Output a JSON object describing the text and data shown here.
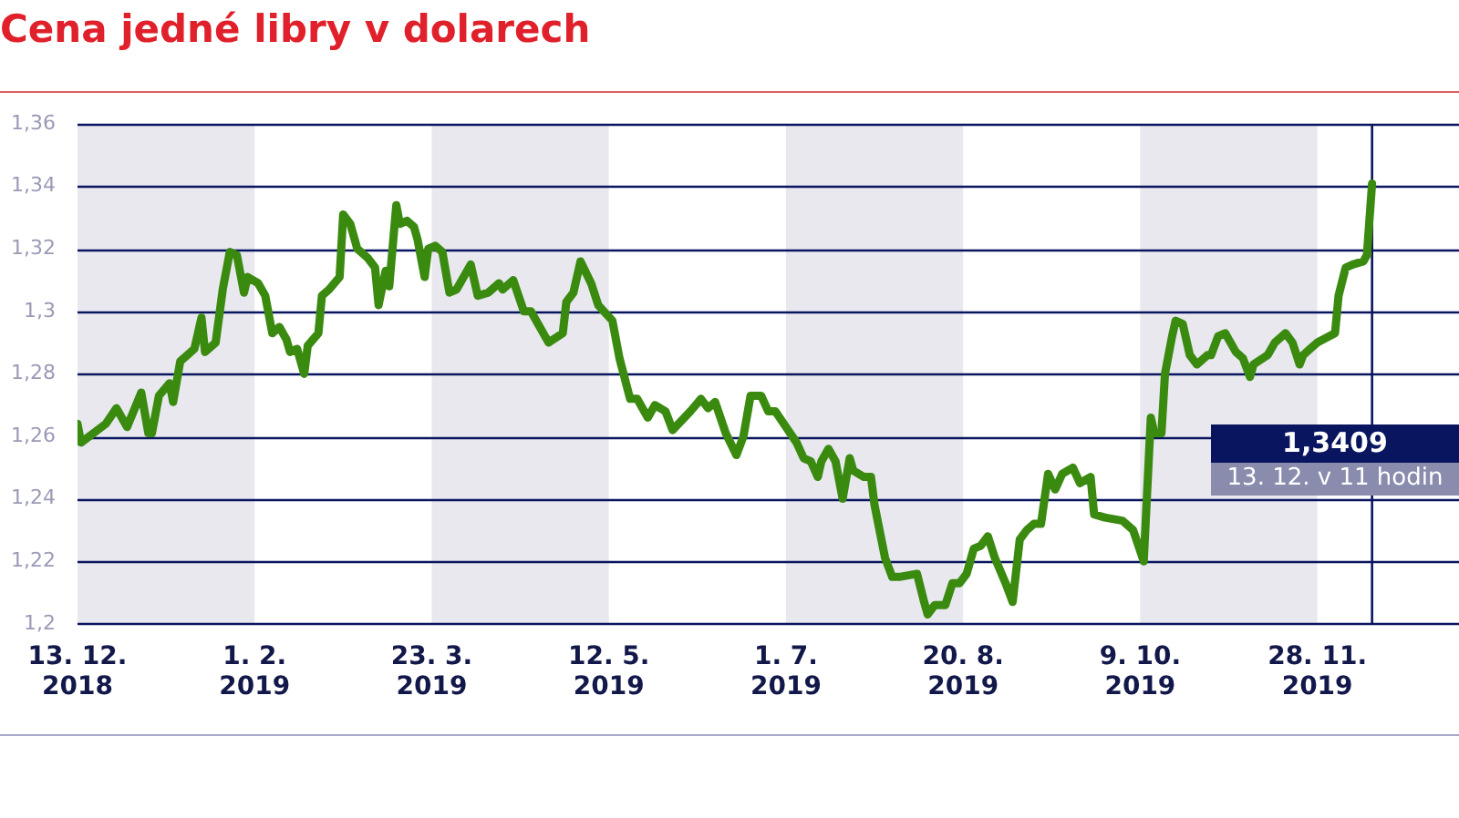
{
  "chart_data": {
    "type": "line",
    "title": "Cena jedné libry v dolarech",
    "x": [
      "2018-12-13",
      "2018-12-14",
      "2018-12-21",
      "2018-12-24",
      "2018-12-27",
      "2018-12-31",
      "2019-01-02",
      "2019-01-03",
      "2019-01-05",
      "2019-01-08",
      "2019-01-09",
      "2019-01-11",
      "2019-01-13",
      "2019-01-15",
      "2019-01-17",
      "2019-01-18",
      "2019-01-21",
      "2019-01-23",
      "2019-01-25",
      "2019-01-27",
      "2019-01-29",
      "2019-01-30",
      "2019-02-02",
      "2019-02-04",
      "2019-02-06",
      "2019-02-08",
      "2019-02-10",
      "2019-02-11",
      "2019-02-13",
      "2019-02-15",
      "2019-02-16",
      "2019-02-19",
      "2019-02-20",
      "2019-02-22",
      "2019-02-25",
      "2019-02-26",
      "2019-02-28",
      "2019-03-02",
      "2019-03-05",
      "2019-03-07",
      "2019-03-08",
      "2019-03-10",
      "2019-03-11",
      "2019-03-13",
      "2019-03-14",
      "2019-03-16",
      "2019-03-18",
      "2019-03-19",
      "2019-03-21",
      "2019-03-22",
      "2019-03-24",
      "2019-03-26",
      "2019-03-28",
      "2019-03-30",
      "2019-04-03",
      "2019-04-05",
      "2019-04-08",
      "2019-04-11",
      "2019-04-12",
      "2019-04-15",
      "2019-04-18",
      "2019-04-20",
      "2019-04-25",
      "2019-04-29",
      "2019-04-30",
      "2019-05-02",
      "2019-05-04",
      "2019-05-07",
      "2019-05-09",
      "2019-05-13",
      "2019-05-15",
      "2019-05-18",
      "2019-05-20",
      "2019-05-23",
      "2019-05-25",
      "2019-05-28",
      "2019-05-30",
      "2019-06-04",
      "2019-06-07",
      "2019-06-09",
      "2019-06-11",
      "2019-06-14",
      "2019-06-17",
      "2019-06-19",
      "2019-06-21",
      "2019-06-24",
      "2019-06-26",
      "2019-06-28",
      "2019-07-01",
      "2019-07-04",
      "2019-07-06",
      "2019-07-08",
      "2019-07-10",
      "2019-07-11",
      "2019-07-13",
      "2019-07-15",
      "2019-07-17",
      "2019-07-19",
      "2019-07-20",
      "2019-07-23",
      "2019-07-25",
      "2019-07-26",
      "2019-07-29",
      "2019-07-31",
      "2019-08-02",
      "2019-08-07",
      "2019-08-09",
      "2019-08-10",
      "2019-08-12",
      "2019-08-15",
      "2019-08-17",
      "2019-08-19",
      "2019-08-21",
      "2019-08-23",
      "2019-08-25",
      "2019-08-27",
      "2019-08-29",
      "2019-09-01",
      "2019-09-03",
      "2019-09-05",
      "2019-09-07",
      "2019-09-09",
      "2019-09-11",
      "2019-09-13",
      "2019-09-15",
      "2019-09-17",
      "2019-09-20",
      "2019-09-22",
      "2019-09-25",
      "2019-09-26",
      "2019-09-29",
      "2019-10-04",
      "2019-10-07",
      "2019-10-10",
      "2019-10-12",
      "2019-10-13",
      "2019-10-15",
      "2019-10-16",
      "2019-10-18",
      "2019-10-19",
      "2019-10-21",
      "2019-10-23",
      "2019-10-25",
      "2019-10-28",
      "2019-10-29",
      "2019-10-31",
      "2019-11-02",
      "2019-11-05",
      "2019-11-07",
      "2019-11-09",
      "2019-11-10",
      "2019-11-14",
      "2019-11-16",
      "2019-11-19",
      "2019-11-21",
      "2019-11-23",
      "2019-11-24",
      "2019-11-26",
      "2019-11-28",
      "2019-12-03",
      "2019-12-04",
      "2019-12-06",
      "2019-12-08",
      "2019-12-11",
      "2019-12-12",
      "2019-12-13T11:00"
    ],
    "series": [
      {
        "color": "#3a8a10",
        "values": [
          1.264,
          1.258,
          1.264,
          1.269,
          1.263,
          1.274,
          1.261,
          1.261,
          1.273,
          1.277,
          1.271,
          1.284,
          1.286,
          1.288,
          1.298,
          1.287,
          1.29,
          1.307,
          1.319,
          1.318,
          1.306,
          1.311,
          1.309,
          1.305,
          1.293,
          1.295,
          1.291,
          1.287,
          1.288,
          1.28,
          1.289,
          1.293,
          1.305,
          1.307,
          1.311,
          1.331,
          1.328,
          1.32,
          1.317,
          1.314,
          1.302,
          1.313,
          1.308,
          1.334,
          1.328,
          1.329,
          1.327,
          1.323,
          1.311,
          1.32,
          1.321,
          1.319,
          1.306,
          1.307,
          1.315,
          1.305,
          1.306,
          1.309,
          1.307,
          1.31,
          1.3,
          1.3,
          1.29,
          1.293,
          1.303,
          1.306,
          1.316,
          1.309,
          1.302,
          1.297,
          1.285,
          1.272,
          1.272,
          1.266,
          1.27,
          1.268,
          1.262,
          1.268,
          1.272,
          1.269,
          1.271,
          1.261,
          1.254,
          1.26,
          1.273,
          1.273,
          1.268,
          1.268,
          1.263,
          1.258,
          1.253,
          1.252,
          1.247,
          1.252,
          1.256,
          1.252,
          1.24,
          1.253,
          1.249,
          1.247,
          1.247,
          1.238,
          1.221,
          1.215,
          1.215,
          1.216,
          1.207,
          1.203,
          1.206,
          1.206,
          1.213,
          1.213,
          1.216,
          1.224,
          1.225,
          1.228,
          1.221,
          1.213,
          1.207,
          1.227,
          1.23,
          1.232,
          1.232,
          1.248,
          1.243,
          1.248,
          1.25,
          1.245,
          1.247,
          1.235,
          1.234,
          1.233,
          1.23,
          1.22,
          1.266,
          1.261,
          1.261,
          1.28,
          1.292,
          1.297,
          1.296,
          1.286,
          1.283,
          1.286,
          1.286,
          1.292,
          1.293,
          1.287,
          1.285,
          1.279,
          1.283,
          1.286,
          1.29,
          1.293,
          1.29,
          1.283,
          1.286,
          1.288,
          1.29,
          1.293,
          1.305,
          1.314,
          1.315,
          1.316,
          1.318,
          1.3409
        ]
      }
    ],
    "xlim": [
      "2018-12-13",
      "2020-01-07"
    ],
    "xticks": [
      {
        "value": "2018-12-13",
        "label": "13. 12. 2018"
      },
      {
        "value": "2019-02-01",
        "label": "1. 2. 2019"
      },
      {
        "value": "2019-03-23",
        "label": "23. 3. 2019"
      },
      {
        "value": "2019-05-12",
        "label": "12. 5. 2019"
      },
      {
        "value": "2019-07-01",
        "label": "1. 7. 2019"
      },
      {
        "value": "2019-08-20",
        "label": "20. 8. 2019"
      },
      {
        "value": "2019-10-09",
        "label": "9. 10. 2019"
      },
      {
        "value": "2019-11-28",
        "label": "28. 11. 2019"
      }
    ],
    "ylim": [
      1.2,
      1.36
    ],
    "yticks": [
      {
        "value": 1.2,
        "label": "1,2"
      },
      {
        "value": 1.22,
        "label": "1,22"
      },
      {
        "value": 1.24,
        "label": "1,24"
      },
      {
        "value": 1.26,
        "label": "1,26"
      },
      {
        "value": 1.28,
        "label": "1,28"
      },
      {
        "value": 1.3,
        "label": "1,3"
      },
      {
        "value": 1.32,
        "label": "1,32"
      },
      {
        "value": 1.34,
        "label": "1,34"
      },
      {
        "value": 1.36,
        "label": "1,36"
      }
    ],
    "grid": "y",
    "legend": false,
    "marker": "none",
    "line_style": "solid",
    "bands": [
      {
        "axis": "x",
        "from": "2018-12-13",
        "to": "2019-02-01",
        "color": "#e8e8ee"
      },
      {
        "axis": "x",
        "from": "2019-03-23",
        "to": "2019-05-12",
        "color": "#e8e8ee"
      },
      {
        "axis": "x",
        "from": "2019-07-01",
        "to": "2019-08-20",
        "color": "#e8e8ee"
      },
      {
        "axis": "x",
        "from": "2019-10-09",
        "to": "2019-11-28",
        "color": "#e8e8ee"
      }
    ],
    "ref_lines": [
      {
        "axis": "x",
        "value": "2019-12-13T11:00",
        "color": "#0a1560"
      }
    ],
    "annotations": [
      "1,3409",
      "13. 12. v 11 hodin"
    ]
  }
}
